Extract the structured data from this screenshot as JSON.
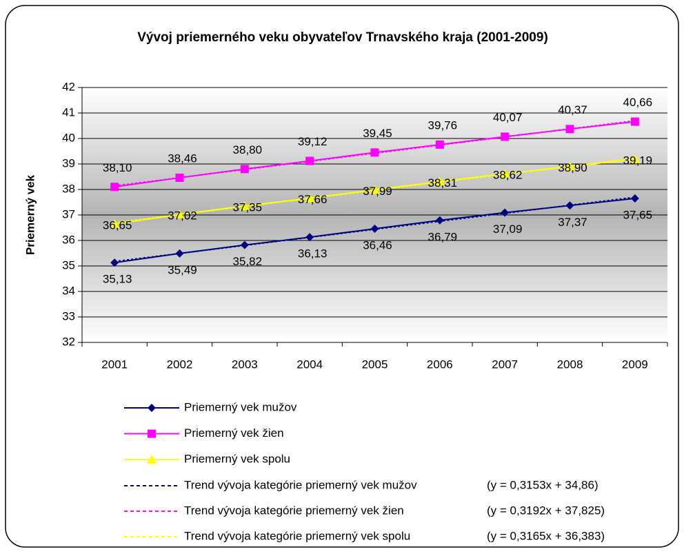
{
  "chart_data": {
    "type": "line",
    "title": "Vývoj priemerného veku obyvateľov Trnavského kraja (2001-2009)",
    "y_label": "Priemerný vek",
    "categories": [
      "2001",
      "2002",
      "2003",
      "2004",
      "2005",
      "2006",
      "2007",
      "2008",
      "2009"
    ],
    "ylim": [
      32,
      42
    ],
    "yticks": [
      32,
      33,
      34,
      35,
      36,
      37,
      38,
      39,
      40,
      41,
      42
    ],
    "grid": true,
    "legend": "bottom",
    "series": [
      {
        "name": "Priemerný vek mužov",
        "color": "#000080",
        "marker": "diamond",
        "label_position": "below",
        "values": [
          35.13,
          35.49,
          35.82,
          36.13,
          36.46,
          36.79,
          37.09,
          37.37,
          37.65
        ],
        "value_labels": [
          "35,13",
          "35,49",
          "35,82",
          "36,13",
          "36,46",
          "36,79",
          "37,09",
          "37,37",
          "37,65"
        ]
      },
      {
        "name": "Priemerný vek žien",
        "color": "#ff00ff",
        "marker": "square",
        "label_position": "above",
        "values": [
          38.1,
          38.46,
          38.8,
          39.12,
          39.45,
          39.76,
          40.07,
          40.37,
          40.66
        ],
        "value_labels": [
          "38,10",
          "38,46",
          "38,80",
          "39,12",
          "39,45",
          "39,76",
          "40,07",
          "40,37",
          "40,66"
        ]
      },
      {
        "name": "Priemerný vek spolu",
        "color": "#ffff00",
        "marker": "triangle",
        "label_position": "center",
        "values": [
          36.65,
          37.02,
          37.35,
          37.66,
          37.99,
          38.31,
          38.62,
          38.9,
          39.19
        ],
        "value_labels": [
          "36,65",
          "37,02",
          "37,35",
          "37,66",
          "37,99",
          "38,31",
          "38,62",
          "38,90",
          "39,19"
        ]
      }
    ],
    "trends": [
      {
        "name": "Trend vývoja kategórie priemerný vek mužov",
        "equation": "(y = 0,3153x + 34,86)",
        "color": "#000080",
        "slope": 0.3153,
        "intercept": 34.86
      },
      {
        "name": "Trend vývoja kategórie priemerný vek žien",
        "equation": "(y = 0,3192x + 37,825)",
        "color": "#ff00ff",
        "slope": 0.3192,
        "intercept": 37.825
      },
      {
        "name": "Trend vývoja kategórie priemerný vek spolu",
        "equation": "(y = 0,3165x + 36,383)",
        "color": "#ffff00",
        "slope": 0.3165,
        "intercept": 36.383
      }
    ]
  }
}
